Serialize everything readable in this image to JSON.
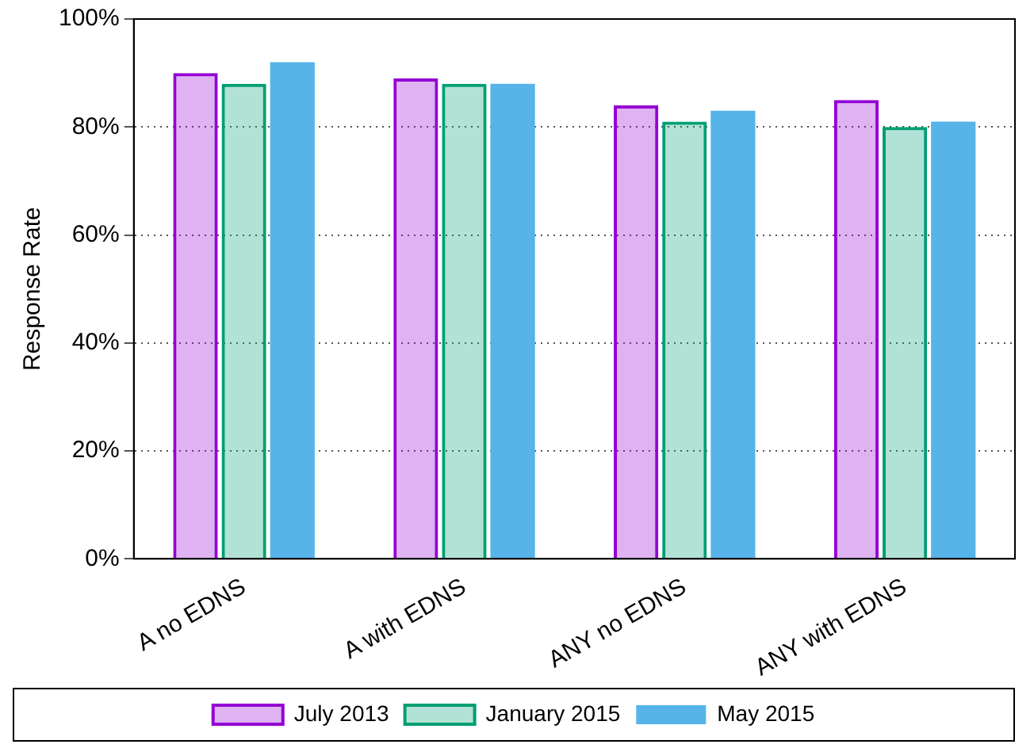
{
  "chart_data": {
    "type": "bar",
    "ylabel": "Response Rate",
    "categories": [
      "A no EDNS",
      "A with EDNS",
      "ANY no EDNS",
      "ANY with EDNS"
    ],
    "series": [
      {
        "name": "July 2013",
        "color": "#9400d3",
        "values": [
          90,
          89,
          84,
          85
        ]
      },
      {
        "name": "January 2015",
        "color": "#009e73",
        "values": [
          88,
          88,
          81,
          80
        ]
      },
      {
        "name": "May 2015",
        "color": "#56b4e9",
        "values": [
          92,
          88,
          83,
          81
        ]
      }
    ],
    "ylim": [
      0,
      100
    ],
    "yticks": [
      {
        "value": 0,
        "label": "0%"
      },
      {
        "value": 20,
        "label": "20%"
      },
      {
        "value": 40,
        "label": "40%"
      },
      {
        "value": 60,
        "label": "60%"
      },
      {
        "value": 80,
        "label": "80%"
      },
      {
        "value": 100,
        "label": "100%"
      }
    ],
    "grid": "y",
    "legend": "bottom"
  }
}
